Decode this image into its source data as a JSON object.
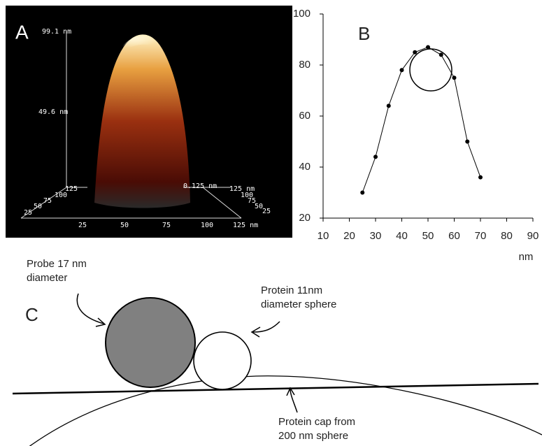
{
  "panel_a": {
    "label": "A",
    "texts": [
      "99.1 nm",
      "49.6 nm",
      "0.125 nm",
      "125",
      "100",
      "75",
      "50",
      "25",
      "125 nm",
      "100",
      "75",
      "50",
      "25",
      "25",
      "50",
      "75",
      "100",
      "125 nm"
    ]
  },
  "chart_data": {
    "type": "line",
    "panel_label": "B",
    "x_label": "nm",
    "x": [
      25,
      30,
      35,
      40,
      45,
      50,
      55,
      60,
      65,
      70
    ],
    "values": [
      30,
      44,
      64,
      78,
      85,
      87,
      84,
      75,
      50,
      36
    ],
    "color": "#000000",
    "xlim": [
      10,
      90
    ],
    "xticks": [
      10,
      20,
      30,
      40,
      50,
      60,
      70,
      80,
      90
    ],
    "ylim": [
      20,
      100
    ],
    "yticks": [
      20,
      40,
      60,
      80,
      100
    ]
  },
  "panel_c": {
    "label": "C",
    "probe": [
      "Probe 17 nm",
      "diameter"
    ],
    "protein": [
      "Protein 11nm",
      "diameter sphere"
    ],
    "cap": [
      "Protein cap from",
      "200 nm sphere"
    ]
  }
}
